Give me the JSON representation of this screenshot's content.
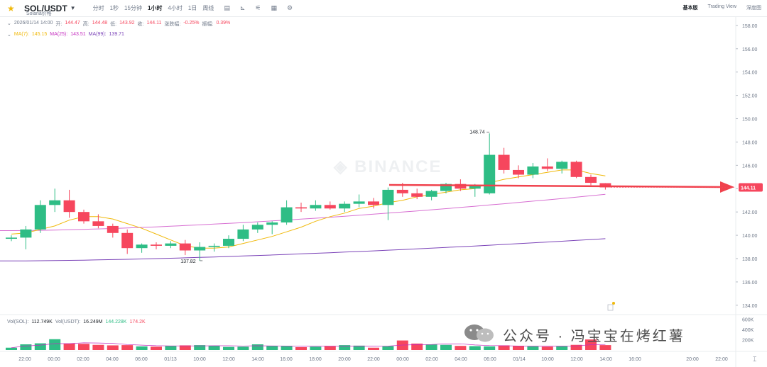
{
  "header": {
    "star_icon": "star-icon",
    "symbol": "SOL/USDT",
    "subname": "Solana价格",
    "intervals": [
      "分时",
      "1秒",
      "15分钟",
      "1小时",
      "4小时",
      "1日",
      "周线"
    ],
    "active_interval": "1小时",
    "views": [
      "基本版",
      "Trading View",
      "深度图"
    ],
    "active_view": "基本版"
  },
  "ohlc": {
    "datetime": "2026/01/14 14:00",
    "open_label": "开:",
    "open": "144.47",
    "high_label": "高:",
    "high": "144.48",
    "low_label": "低:",
    "low": "143.92",
    "close_label": "收:",
    "close": "144.11",
    "change_label": "涨跌幅:",
    "change": "-0.25%",
    "amp_label": "振幅:",
    "amp": "0.39%"
  },
  "ma": {
    "ma7_label": "MA(7):",
    "ma7": "145.15",
    "ma25_label": "MA(25):",
    "ma25": "143.51",
    "ma99_label": "MA(99):",
    "ma99": "139.71"
  },
  "vol": {
    "sol_label": "Vol(SOL):",
    "sol": "112.749K",
    "usdt_label": "Vol(USDT):",
    "usdt": "16.249M",
    "v1": "144.228K",
    "v2": "174.2K"
  },
  "watermark": {
    "brand": "BINANCE",
    "text": "公众号 · 冯宝宝在烤红薯"
  },
  "colors": {
    "up": "#2ebd85",
    "down": "#f6465d",
    "ma7": "#f0b90b",
    "ma25": "#d76fd2",
    "ma99": "#7b43b8",
    "arrow": "#f0424d"
  },
  "chart_data": {
    "type": "candlestick",
    "price_axis": {
      "ticks": [
        "158.00",
        "156.00",
        "154.00",
        "152.00",
        "150.00",
        "148.00",
        "146.00",
        "144.00",
        "142.00",
        "140.00",
        "138.00",
        "136.00",
        "134.00"
      ],
      "min": 133.2,
      "max": 158.6
    },
    "volume_axis": {
      "ticks": [
        "600K",
        "400K",
        "200K"
      ]
    },
    "time_ticks": [
      "22:00",
      "00:00",
      "02:00",
      "04:00",
      "06:00",
      "01/13",
      "10:00",
      "12:00",
      "14:00",
      "16:00",
      "18:00",
      "20:00",
      "22:00",
      "00:00",
      "02:00",
      "04:00",
      "06:00",
      "01/14",
      "10:00",
      "12:00",
      "14:00",
      "16:00",
      "20:00",
      "22:00"
    ],
    "candles": [
      {
        "o": 139.7,
        "h": 140.0,
        "l": 139.5,
        "c": 139.8
      },
      {
        "o": 139.8,
        "h": 140.8,
        "l": 138.8,
        "c": 140.5
      },
      {
        "o": 140.5,
        "h": 143.0,
        "l": 140.2,
        "c": 142.6
      },
      {
        "o": 142.6,
        "h": 144.0,
        "l": 142.0,
        "c": 143.0
      },
      {
        "o": 143.0,
        "h": 143.9,
        "l": 141.5,
        "c": 142.0
      },
      {
        "o": 142.0,
        "h": 142.2,
        "l": 141.0,
        "c": 141.2
      },
      {
        "o": 141.2,
        "h": 141.8,
        "l": 140.6,
        "c": 140.8
      },
      {
        "o": 140.8,
        "h": 141.0,
        "l": 139.8,
        "c": 140.2
      },
      {
        "o": 140.2,
        "h": 140.5,
        "l": 138.4,
        "c": 138.9
      },
      {
        "o": 138.9,
        "h": 139.3,
        "l": 138.5,
        "c": 139.2
      },
      {
        "o": 139.2,
        "h": 139.4,
        "l": 138.8,
        "c": 139.1
      },
      {
        "o": 139.1,
        "h": 139.5,
        "l": 138.9,
        "c": 139.3
      },
      {
        "o": 139.3,
        "h": 139.6,
        "l": 138.3,
        "c": 138.7
      },
      {
        "o": 138.7,
        "h": 139.4,
        "l": 137.82,
        "c": 139.0
      },
      {
        "o": 139.0,
        "h": 139.3,
        "l": 138.6,
        "c": 139.1
      },
      {
        "o": 139.1,
        "h": 140.0,
        "l": 138.9,
        "c": 139.7
      },
      {
        "o": 139.7,
        "h": 140.9,
        "l": 139.5,
        "c": 140.5
      },
      {
        "o": 140.5,
        "h": 141.1,
        "l": 140.2,
        "c": 140.9
      },
      {
        "o": 140.9,
        "h": 141.2,
        "l": 140.1,
        "c": 141.1
      },
      {
        "o": 141.1,
        "h": 143.0,
        "l": 140.9,
        "c": 142.4
      },
      {
        "o": 142.4,
        "h": 142.8,
        "l": 142.0,
        "c": 142.3
      },
      {
        "o": 142.3,
        "h": 143.0,
        "l": 142.1,
        "c": 142.6
      },
      {
        "o": 142.6,
        "h": 142.9,
        "l": 142.2,
        "c": 142.3
      },
      {
        "o": 142.3,
        "h": 142.9,
        "l": 142.0,
        "c": 142.7
      },
      {
        "o": 142.7,
        "h": 143.5,
        "l": 142.4,
        "c": 142.9
      },
      {
        "o": 142.9,
        "h": 143.2,
        "l": 142.3,
        "c": 142.6
      },
      {
        "o": 142.6,
        "h": 144.1,
        "l": 141.3,
        "c": 143.9
      },
      {
        "o": 143.9,
        "h": 144.5,
        "l": 143.3,
        "c": 143.6
      },
      {
        "o": 143.6,
        "h": 144.0,
        "l": 143.1,
        "c": 143.3
      },
      {
        "o": 143.3,
        "h": 143.9,
        "l": 143.0,
        "c": 143.8
      },
      {
        "o": 143.8,
        "h": 144.5,
        "l": 143.6,
        "c": 144.4
      },
      {
        "o": 144.4,
        "h": 144.8,
        "l": 143.8,
        "c": 144.0
      },
      {
        "o": 144.0,
        "h": 144.4,
        "l": 143.3,
        "c": 144.3
      },
      {
        "o": 143.6,
        "h": 148.74,
        "l": 143.5,
        "c": 146.9
      },
      {
        "o": 146.9,
        "h": 147.5,
        "l": 145.3,
        "c": 145.6
      },
      {
        "o": 145.6,
        "h": 146.0,
        "l": 144.9,
        "c": 145.2
      },
      {
        "o": 145.2,
        "h": 146.2,
        "l": 144.9,
        "c": 145.9
      },
      {
        "o": 145.9,
        "h": 146.6,
        "l": 145.5,
        "c": 145.7
      },
      {
        "o": 145.7,
        "h": 146.4,
        "l": 145.3,
        "c": 146.3
      },
      {
        "o": 146.3,
        "h": 146.4,
        "l": 144.9,
        "c": 145.0
      },
      {
        "o": 145.0,
        "h": 145.2,
        "l": 144.3,
        "c": 144.5
      },
      {
        "o": 144.47,
        "h": 144.48,
        "l": 143.92,
        "c": 144.11
      }
    ],
    "volumes": [
      45,
      110,
      130,
      210,
      125,
      120,
      100,
      90,
      95,
      70,
      65,
      80,
      90,
      95,
      85,
      60,
      65,
      110,
      80,
      75,
      55,
      65,
      80,
      95,
      85,
      45,
      75,
      185,
      125,
      110,
      100,
      80,
      75,
      70,
      90,
      80,
      70,
      65,
      75,
      100,
      205,
      95
    ],
    "ma7": [
      140.1,
      140.2,
      140.5,
      140.8,
      141.3,
      141.6,
      141.6,
      141.4,
      141.0,
      140.6,
      140.1,
      139.6,
      139.1,
      138.9,
      138.9,
      139.0,
      139.3,
      139.6,
      139.9,
      140.3,
      140.7,
      141.2,
      141.6,
      141.9,
      142.3,
      142.5,
      142.8,
      143.0,
      143.3,
      143.5,
      143.7,
      143.9,
      144.0,
      144.5,
      144.8,
      145.0,
      145.2,
      145.4,
      145.6,
      145.6,
      145.3,
      145.1
    ],
    "ma25_range": [
      140.4,
      143.51
    ],
    "ma99_range": [
      137.8,
      139.71
    ],
    "high_annotation": "148.74",
    "low_annotation": "137.82",
    "last_price": "144.11"
  }
}
